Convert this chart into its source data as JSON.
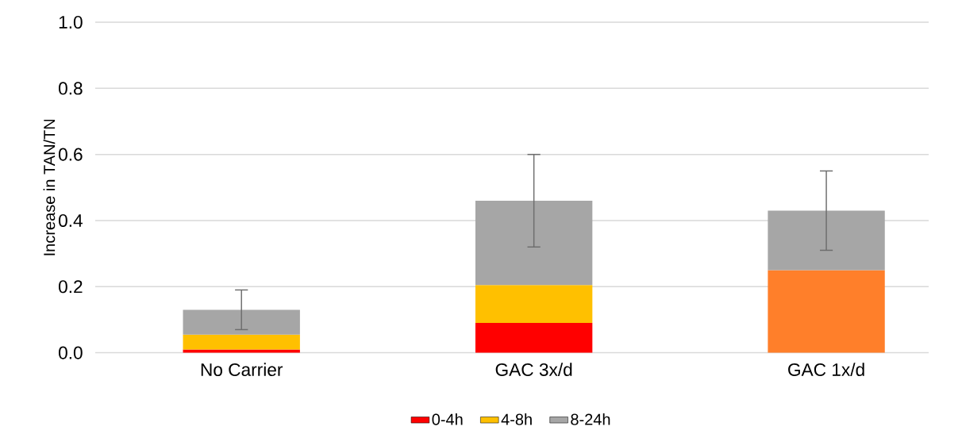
{
  "chart_data": {
    "type": "bar",
    "stacked": true,
    "ylabel": "Increase in TAN/TN",
    "categories": [
      "No Carrier",
      "GAC 3x/d",
      "GAC 1x/d"
    ],
    "series": [
      {
        "name": "0-4h",
        "color": "#ff0000",
        "values": [
          0.01,
          0.09,
          null
        ]
      },
      {
        "name": "4-8h",
        "color": "#ffc000",
        "values": [
          0.045,
          0.115,
          null
        ]
      },
      {
        "color": "#ff7f2a",
        "values": [
          null,
          null,
          0.25
        ]
      },
      {
        "name": "8-24h",
        "color": "#a6a6a6",
        "values": [
          0.075,
          0.255,
          0.18
        ],
        "errors": [
          0.06,
          0.14,
          0.12
        ]
      }
    ],
    "ylim": [
      0,
      1
    ],
    "yticks": [
      {
        "value": 0,
        "label": "0.0"
      },
      0.2,
      0.4,
      0.6,
      0.8,
      {
        "value": 1,
        "label": "1.0"
      }
    ],
    "grid": "y",
    "legend": "bottom"
  }
}
